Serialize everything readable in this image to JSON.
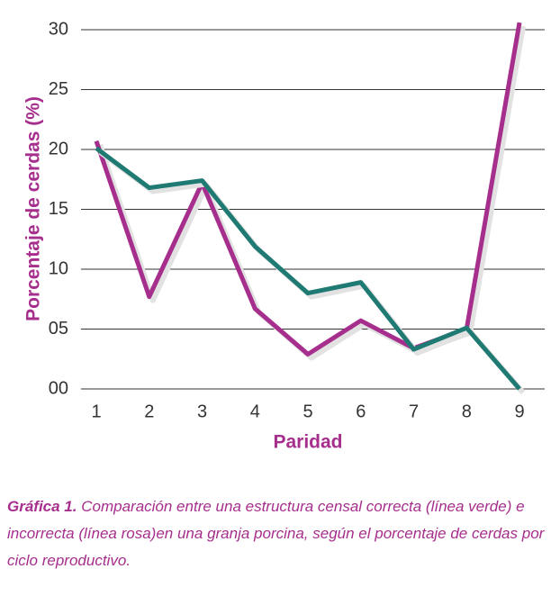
{
  "chart_data": {
    "type": "line",
    "y_label": "Porcentaje de cerdas (%)",
    "x_label": "Paridad",
    "categories": [
      "1",
      "2",
      "3",
      "4",
      "5",
      "6",
      "7",
      "8",
      "9"
    ],
    "series": [
      {
        "color": "#a62e8c",
        "values": [
          20.7,
          7.7,
          17.2,
          6.7,
          2.9,
          5.7,
          3.4,
          5.0,
          30.6
        ]
      },
      {
        "color": "#1f7a73",
        "values": [
          20.1,
          16.8,
          17.4,
          11.9,
          8.0,
          8.9,
          3.3,
          5.1,
          0
        ]
      }
    ],
    "ylim": [
      0,
      30
    ],
    "yticks": [
      {
        "value": 0,
        "label": "00"
      },
      {
        "value": 5,
        "label": "05"
      },
      10,
      15,
      20,
      25,
      30
    ],
    "grid": true,
    "caption_label": "Gráfica 1.",
    "caption": "Comparación entre una estructura censal correcta (línea verde) e incorrecta (línea rosa)en una granja porcina, según el porcentaje de cerdas por ciclo reproductivo."
  }
}
